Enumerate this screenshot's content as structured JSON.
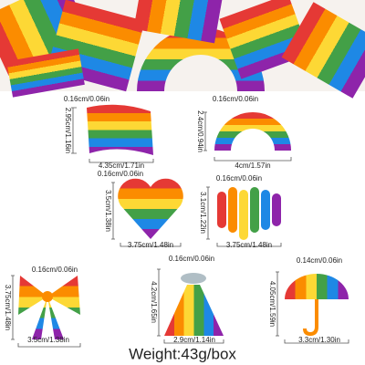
{
  "items": [
    {
      "thickness": "0.16cm/0.06in",
      "height": "2.95cm/1.16in",
      "width": "4.35cm/1.71in"
    },
    {
      "thickness": "0.16cm/0.06in",
      "height": "2.4cm/0.94in",
      "width": "4cm/1.57in"
    },
    {
      "thickness": "0.16cm/0.06in",
      "height": "3.5cm/1.38in",
      "width": "3.75cm/1.48in"
    },
    {
      "thickness": "0.16cm/0.06in",
      "height": "3.1cm/1.22in",
      "width": "3.75cm/1.48in"
    },
    {
      "thickness": "0.16cm/0.06in",
      "height": "3.75cm/1.48in",
      "width": "3.5cm/1.38in"
    },
    {
      "thickness": "0.16cm/0.06in",
      "height": "4.2cm/1.65in",
      "width": "2.9cm/1.14in"
    },
    {
      "thickness": "0.14cm/0.06in",
      "height": "4.05cm/1.59in",
      "width": "3.3cm/1.30in"
    }
  ],
  "weight": "Weight:43g/box"
}
